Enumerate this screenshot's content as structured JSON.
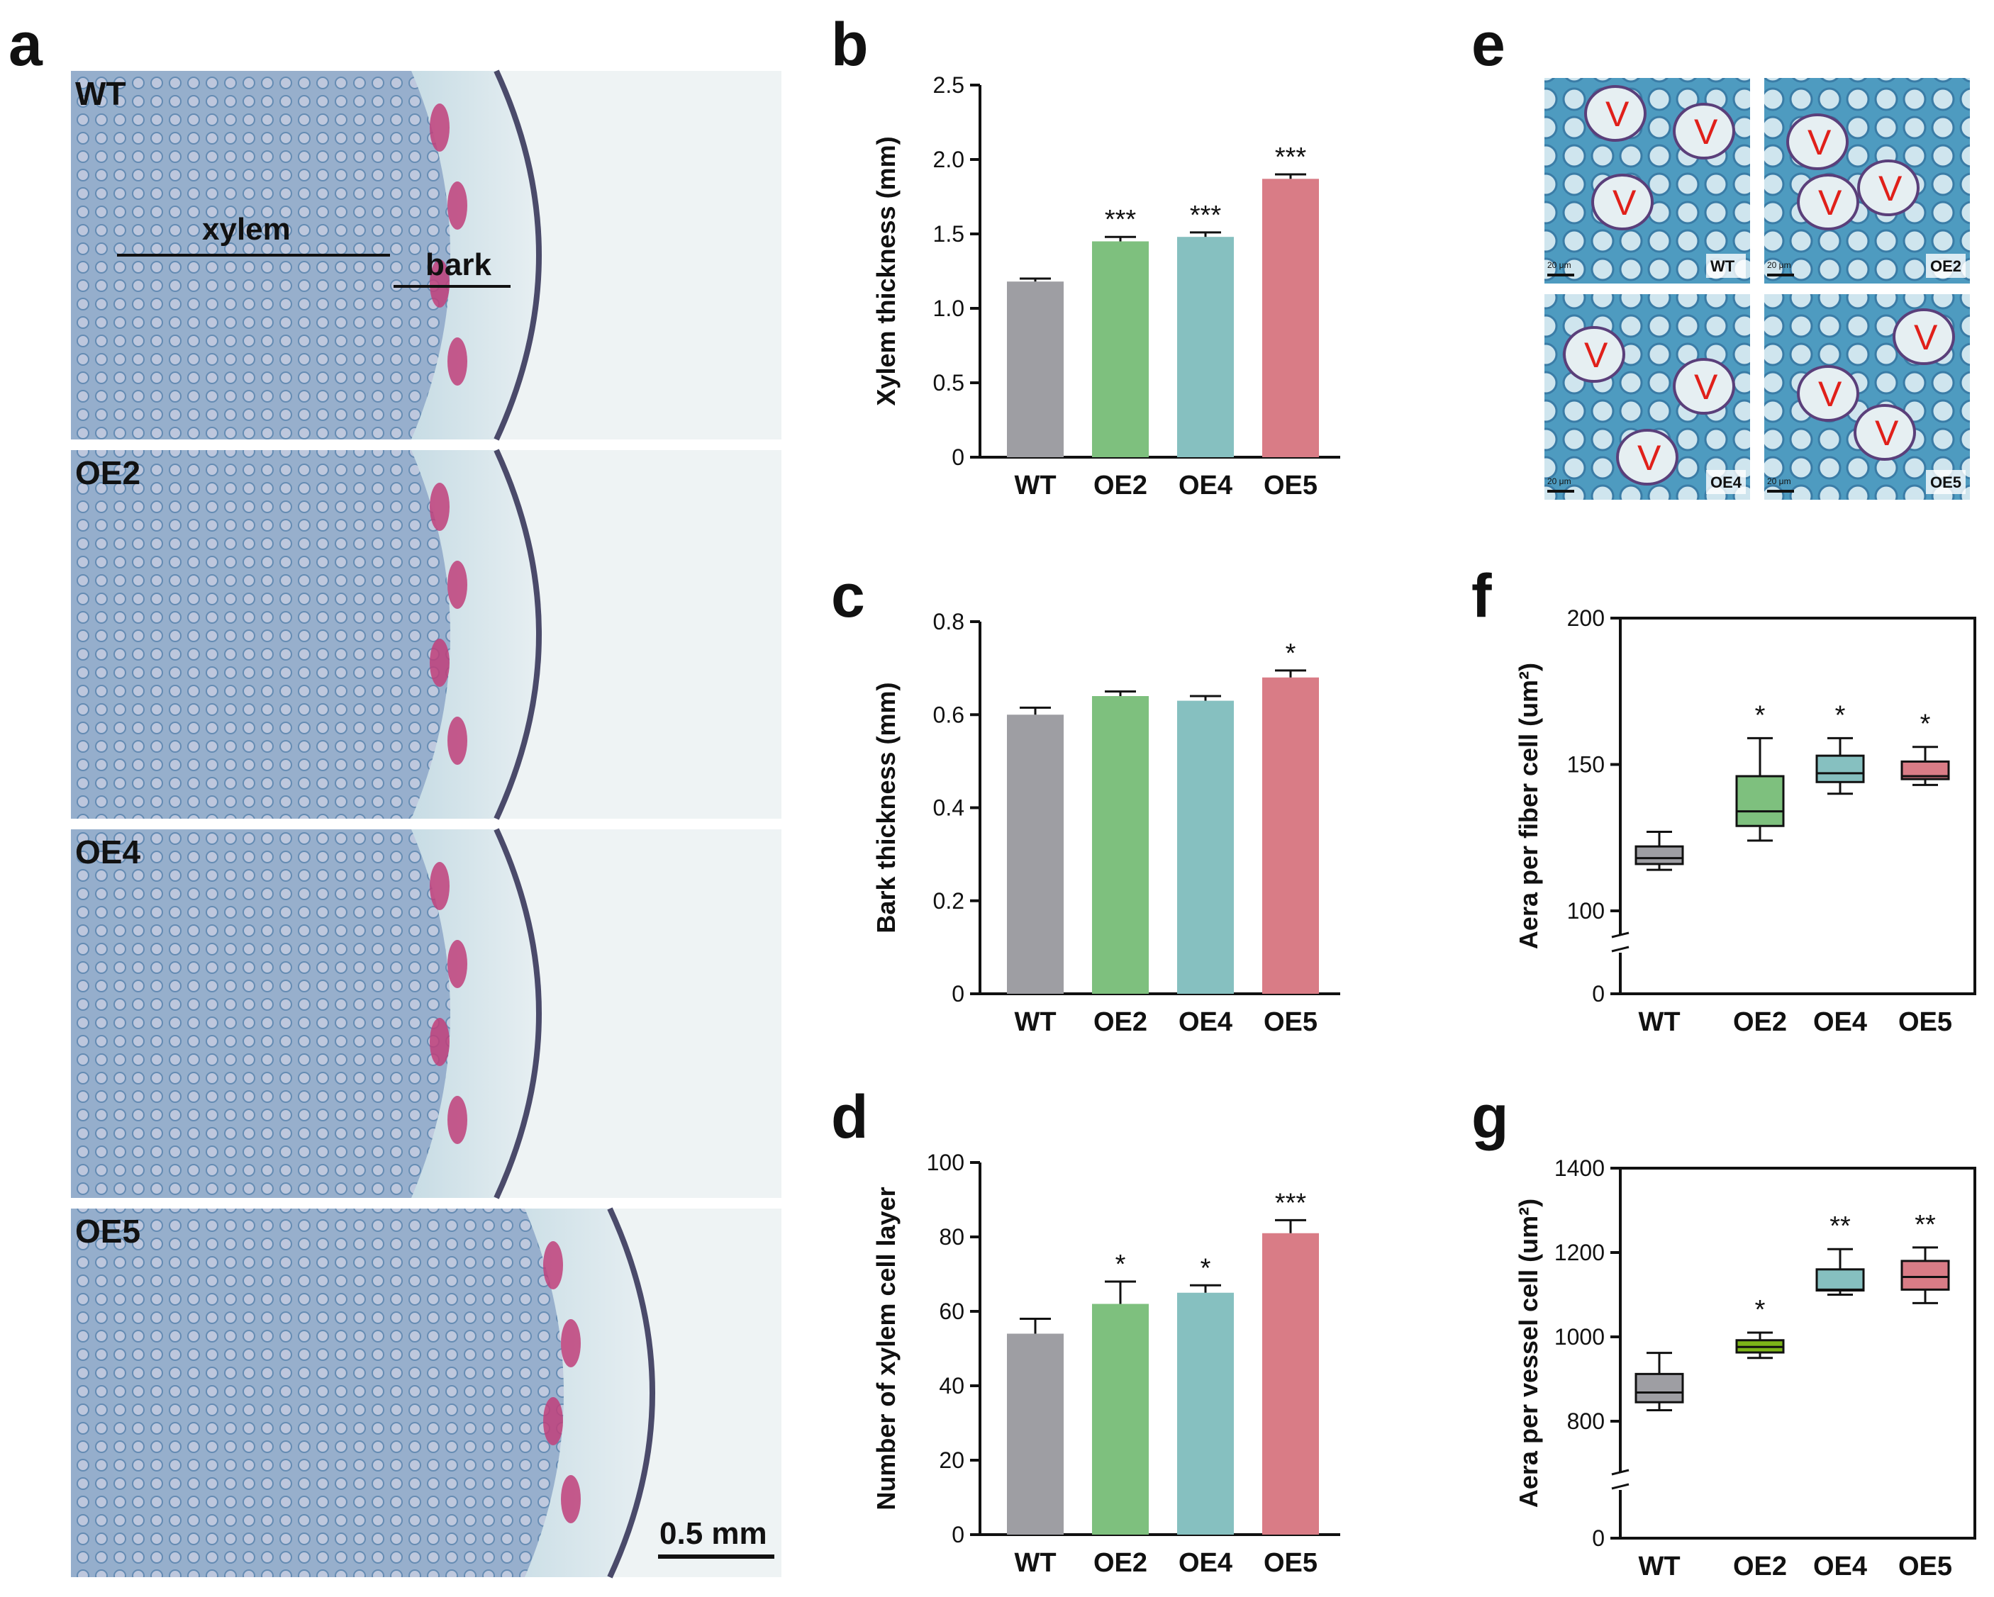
{
  "panel_labels": {
    "a": "a",
    "b": "b",
    "c": "c",
    "d": "d",
    "e": "e",
    "f": "f",
    "g": "g"
  },
  "histology_a": {
    "panels": [
      "WT",
      "OE2",
      "OE4",
      "OE5"
    ],
    "annotation_xylem": "xylem",
    "annotation_bark": "bark",
    "scale_bar": "0.5 mm"
  },
  "micrographs_e": {
    "panels": [
      "WT",
      "OE2",
      "OE4",
      "OE5"
    ],
    "vessel_marker": "V",
    "scale_bar": "20 μm"
  },
  "colors": {
    "WT": "#9e9ea3",
    "OE2": "#7ec07e",
    "OE4": "#86c0c0",
    "OE5": "#d97c86",
    "OE2_box_g": "#7cb518"
  },
  "chart_data": [
    {
      "id": "b",
      "type": "bar",
      "categories": [
        "WT",
        "OE2",
        "OE4",
        "OE5"
      ],
      "values": [
        1.18,
        1.45,
        1.48,
        1.87
      ],
      "errors": [
        0.02,
        0.03,
        0.03,
        0.03
      ],
      "significance": [
        "",
        "***",
        "***",
        "***"
      ],
      "ylabel": "Xylem thickness (mm)",
      "ylim": [
        0,
        2.5
      ],
      "yticks": [
        "0",
        "0.5",
        "1.0",
        "1.5",
        "2.0",
        "2.5"
      ]
    },
    {
      "id": "c",
      "type": "bar",
      "categories": [
        "WT",
        "OE2",
        "OE4",
        "OE5"
      ],
      "values": [
        0.6,
        0.64,
        0.63,
        0.68
      ],
      "errors": [
        0.015,
        0.01,
        0.01,
        0.015
      ],
      "significance": [
        "",
        "",
        "",
        "*"
      ],
      "ylabel": "Bark thickness (mm)",
      "ylim": [
        0,
        0.8
      ],
      "yticks": [
        "0",
        "0.2",
        "0.4",
        "0.6",
        "0.8"
      ]
    },
    {
      "id": "d",
      "type": "bar",
      "categories": [
        "WT",
        "OE2",
        "OE4",
        "OE5"
      ],
      "values": [
        54,
        62,
        65,
        81
      ],
      "errors": [
        4,
        6,
        2,
        3.5
      ],
      "significance": [
        "",
        "*",
        "*",
        "***"
      ],
      "ylabel": "Number of xylem cell layer",
      "ylim": [
        0,
        100
      ],
      "yticks": [
        "0",
        "20",
        "40",
        "60",
        "80",
        "100"
      ]
    },
    {
      "id": "f",
      "type": "box",
      "categories": [
        "WT",
        "OE2",
        "OE4",
        "OE5"
      ],
      "boxes": [
        {
          "min": 114,
          "q1": 116,
          "median": 118,
          "q3": 122,
          "max": 127
        },
        {
          "min": 124,
          "q1": 129,
          "median": 134,
          "q3": 146,
          "max": 159
        },
        {
          "min": 140,
          "q1": 144,
          "median": 147,
          "q3": 153,
          "max": 159
        },
        {
          "min": 143,
          "q1": 145,
          "median": 146,
          "q3": 151,
          "max": 156
        }
      ],
      "significance": [
        "",
        "*",
        "*",
        "*"
      ],
      "ylabel": "Aera per fiber cell (um²)",
      "yticks": [
        "0",
        "100",
        "150",
        "200"
      ]
    },
    {
      "id": "g",
      "type": "box",
      "categories": [
        "WT",
        "OE2",
        "OE4",
        "OE5"
      ],
      "boxes": [
        {
          "min": 826,
          "q1": 845,
          "median": 868,
          "q3": 912,
          "max": 962
        },
        {
          "min": 950,
          "q1": 963,
          "median": 976,
          "q3": 992,
          "max": 1010
        },
        {
          "min": 1100,
          "q1": 1110,
          "median": 1112,
          "q3": 1160,
          "max": 1208
        },
        {
          "min": 1080,
          "q1": 1112,
          "median": 1142,
          "q3": 1180,
          "max": 1212
        }
      ],
      "significance": [
        "",
        "*",
        "**",
        "**"
      ],
      "ylabel": "Aera per vessel cell (um²)",
      "yticks": [
        "0",
        "800",
        "1000",
        "1200",
        "1400"
      ]
    }
  ]
}
